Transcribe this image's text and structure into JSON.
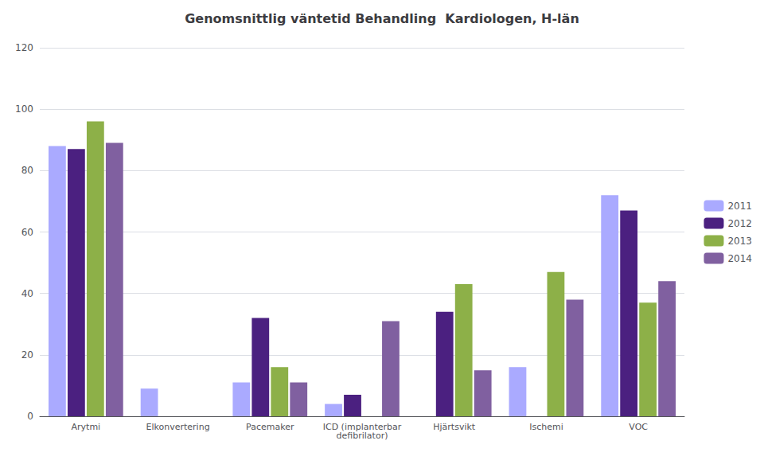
{
  "chart_data": {
    "type": "bar",
    "title": "Genomsnittlig väntetid Behandling  Kardiologen, H-län",
    "categories": [
      "Arytmi",
      "Elkonvertering",
      "Pacemaker",
      "ICD (implanterbar\ndefibrilator)",
      "Hjärtsvikt",
      "Ischemi",
      "VOC"
    ],
    "series": [
      {
        "name": "2011",
        "color": "#aaaaff",
        "values": [
          88,
          9,
          11,
          4,
          0,
          16,
          72
        ]
      },
      {
        "name": "2012",
        "color": "#4b2080",
        "values": [
          87,
          0,
          32,
          7,
          34,
          0,
          67
        ]
      },
      {
        "name": "2013",
        "color": "#8db048",
        "values": [
          96,
          0,
          16,
          0,
          43,
          47,
          37
        ]
      },
      {
        "name": "2014",
        "color": "#8060a0",
        "values": [
          89,
          0,
          11,
          31,
          15,
          38,
          44
        ]
      }
    ],
    "ylim": [
      0,
      120
    ],
    "yticks": [
      0,
      20,
      40,
      60,
      80,
      100,
      120
    ],
    "grid": true,
    "legend": "right"
  }
}
